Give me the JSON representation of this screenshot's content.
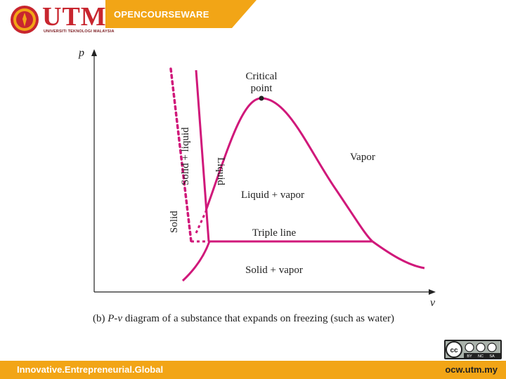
{
  "header": {
    "logo_text": "UTM",
    "logo_subtitle": "UNIVERSITI TEKNOLOGI MALAYSIA",
    "section_label": "OPENCOURSEWARE"
  },
  "diagram": {
    "y_axis_label": "p",
    "x_axis_label": "v",
    "critical_point_label_line1": "Critical",
    "critical_point_label_line2": "point",
    "region_vapor": "Vapor",
    "region_liquid": "Liquid",
    "region_solid_liquid": "Solid + liquid",
    "region_solid": "Solid",
    "region_liquid_vapor": "Liquid + vapor",
    "triple_line": "Triple line",
    "region_solid_vapor": "Solid + vapor",
    "caption_prefix": "(b) ",
    "caption_italic": "P-v",
    "caption_rest": " diagram of a substance that expands on freezing (such as water)",
    "curve_color": "#d0187a"
  },
  "footer": {
    "tagline": "Innovative.Entrepreneurial.Global",
    "url": "ocw.utm.my"
  },
  "license_badge": {
    "text_1": "BY",
    "text_2": "NC",
    "text_3": "SA"
  },
  "colors": {
    "header_orange": "#f2a516",
    "brand_red": "#c8262f",
    "footer_orange": "#f2a516"
  }
}
